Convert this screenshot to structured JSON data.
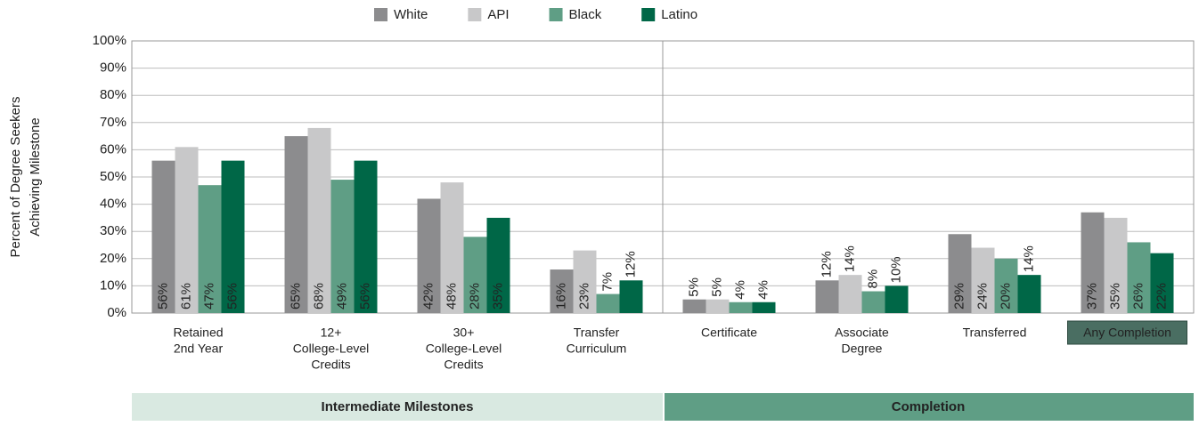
{
  "chart_data": {
    "type": "bar",
    "y_label": [
      "Percent of Degree Seekers",
      "Achieving Milestone"
    ],
    "categories": [
      [
        "Retained",
        "2nd Year"
      ],
      [
        "12+",
        "College-Level",
        "Credits"
      ],
      [
        "30+",
        "College-Level",
        "Credits"
      ],
      [
        "Transfer",
        "Curriculum"
      ],
      [
        "Certificate"
      ],
      [
        "Associate",
        "Degree"
      ],
      [
        "Transferred"
      ],
      [
        "Any Completion"
      ]
    ],
    "highlight_category": 7,
    "series": [
      {
        "name": "White",
        "color": "#8c8c8e",
        "label_color": "#222222",
        "values": [
          56,
          65,
          42,
          16,
          5,
          12,
          29,
          37
        ],
        "value_labels": [
          "56%",
          "65%",
          "42%",
          "16%",
          "5%",
          "12%",
          "29%",
          "37%"
        ]
      },
      {
        "name": "API",
        "color": "#c8c8c9",
        "label_color": "#222222",
        "values": [
          61,
          68,
          48,
          23,
          5,
          14,
          24,
          35
        ],
        "value_labels": [
          "61%",
          "68%",
          "48%",
          "23%",
          "5%",
          "14%",
          "24%",
          "35%"
        ]
      },
      {
        "name": "Black",
        "color": "#5f9e85",
        "label_color": "#ffffff",
        "values": [
          47,
          49,
          28,
          7,
          4,
          8,
          20,
          26
        ],
        "value_labels": [
          "47%",
          "49%",
          "28%",
          "7%",
          "4%",
          "8%",
          "20%",
          "26%"
        ]
      },
      {
        "name": "Latino",
        "color": "#006747",
        "label_color": "#ffffff",
        "values": [
          56,
          56,
          35,
          12,
          4,
          10,
          14,
          22
        ],
        "value_labels": [
          "56%",
          "56%",
          "35%",
          "12%",
          "4%",
          "10%",
          "14%",
          "22%"
        ]
      }
    ],
    "ylim": [
      0,
      100
    ],
    "yticks": [
      {
        "value": 0,
        "label": "0%"
      },
      {
        "value": 10,
        "label": "10%"
      },
      {
        "value": 20,
        "label": "20%"
      },
      {
        "value": 30,
        "label": "30%"
      },
      {
        "value": 40,
        "label": "40%"
      },
      {
        "value": 50,
        "label": "50%"
      },
      {
        "value": 60,
        "label": "60%"
      },
      {
        "value": 70,
        "label": "70%"
      },
      {
        "value": 80,
        "label": "80%"
      },
      {
        "value": 90,
        "label": "90%"
      },
      {
        "value": 100,
        "label": "100%"
      }
    ],
    "grid": true,
    "groups": [
      {
        "name": "Intermediate Milestones",
        "span": 4,
        "color": "#d9e9e1",
        "text_color": "#333333"
      },
      {
        "name": "Completion",
        "span": 4,
        "color": "#5f9e85",
        "text_color": "#ffffff"
      }
    ]
  }
}
